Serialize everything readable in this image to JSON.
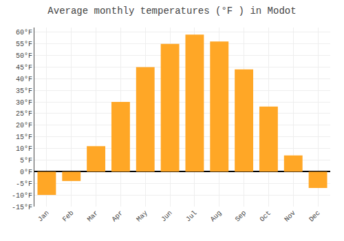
{
  "chart_data": {
    "type": "bar",
    "title": "Average monthly temperatures (°F ) in Modot",
    "categories": [
      "Jan",
      "Feb",
      "Mar",
      "Apr",
      "May",
      "Jun",
      "Jul",
      "Aug",
      "Sep",
      "Oct",
      "Nov",
      "Dec"
    ],
    "values": [
      -10,
      -4,
      11,
      30,
      45,
      55,
      59,
      56,
      44,
      28,
      7,
      -7
    ],
    "color": "#FFA726",
    "ylim": [
      -15,
      62
    ],
    "yticks": [
      {
        "value": -15,
        "label": "-15°F"
      },
      {
        "value": -10,
        "label": "-10°F"
      },
      {
        "value": -5,
        "label": "-5°F"
      },
      {
        "value": 0,
        "label": "0°F"
      },
      {
        "value": 5,
        "label": "5°F"
      },
      {
        "value": 10,
        "label": "10°F"
      },
      {
        "value": 15,
        "label": "15°F"
      },
      {
        "value": 20,
        "label": "20°F"
      },
      {
        "value": 25,
        "label": "25°F"
      },
      {
        "value": 30,
        "label": "30°F"
      },
      {
        "value": 35,
        "label": "35°F"
      },
      {
        "value": 40,
        "label": "40°F"
      },
      {
        "value": 45,
        "label": "45°F"
      },
      {
        "value": 50,
        "label": "50°F"
      },
      {
        "value": 55,
        "label": "55°F"
      },
      {
        "value": 60,
        "label": "60°F"
      }
    ],
    "grid": true
  }
}
